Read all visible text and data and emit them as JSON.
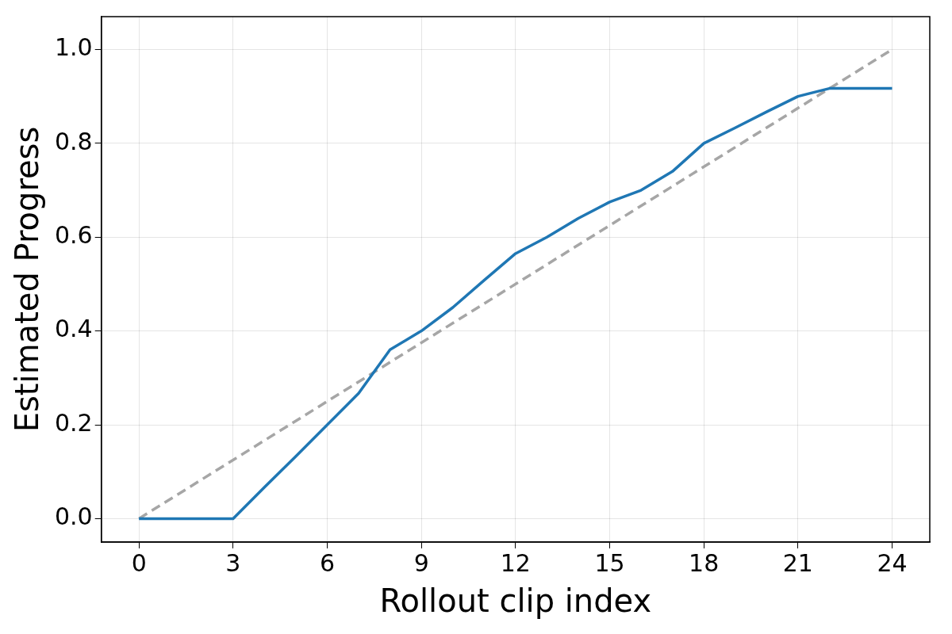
{
  "chart_data": {
    "type": "line",
    "xlabel": "Rollout clip index",
    "ylabel": "Estimated Progress",
    "xlim": [
      -1.2,
      25.2
    ],
    "xticks": [
      0,
      3,
      6,
      9,
      12,
      15,
      18,
      21,
      24
    ],
    "ylim": [
      -0.05,
      1.07
    ],
    "yticks": [
      {
        "value": 0,
        "label": "0.0"
      },
      0.2,
      0.4,
      0.6,
      0.8,
      {
        "value": 1,
        "label": "1.0"
      }
    ],
    "grid": true,
    "legend": false,
    "marker": "none",
    "series": [
      {
        "color": "#1f77b4",
        "line_style": "solid",
        "x": [
          0,
          1,
          2,
          3,
          4,
          5,
          6,
          7,
          8,
          9,
          10,
          11,
          12,
          13,
          14,
          15,
          16,
          17,
          18,
          19,
          20,
          21,
          22,
          23,
          24
        ],
        "values": [
          0,
          0,
          0,
          0,
          0.067,
          0.133,
          0.2,
          0.267,
          0.36,
          0.4,
          0.45,
          0.508,
          0.565,
          0.6,
          0.64,
          0.675,
          0.7,
          0.74,
          0.8,
          0.833,
          0.867,
          0.9,
          0.917,
          0.917,
          0.917
        ]
      },
      {
        "color": "#a6a6a6",
        "line_style": "dashed",
        "x": [
          0,
          24
        ],
        "values": [
          0,
          1
        ]
      }
    ]
  }
}
